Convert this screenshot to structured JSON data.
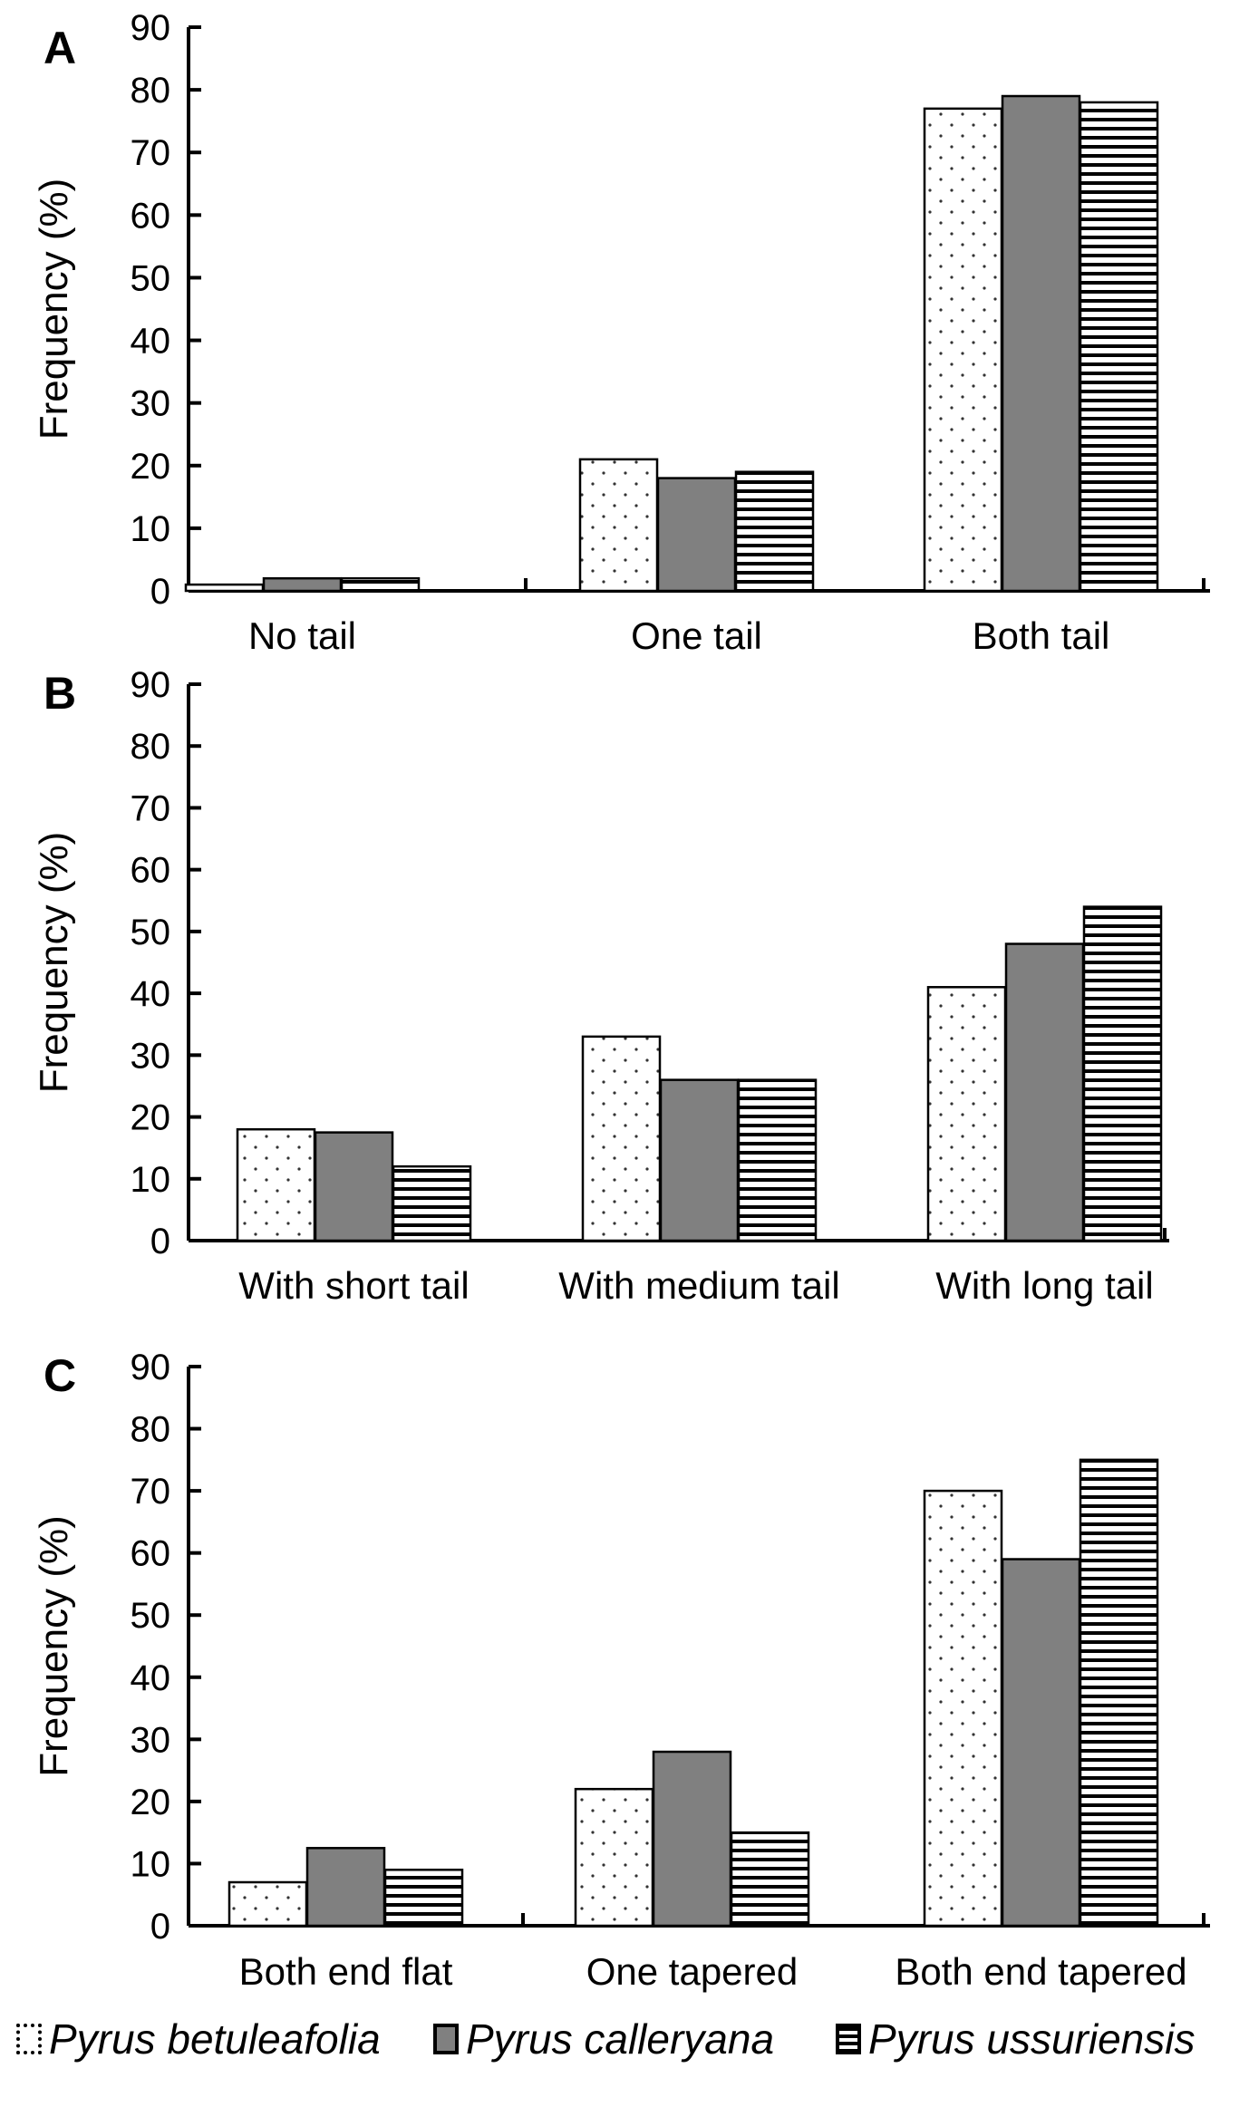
{
  "chart_data": [
    {
      "type": "bar",
      "panel_label": "A",
      "categories": [
        "No tail",
        "One tail",
        "Both tail"
      ],
      "series": [
        {
          "name": "Pyrus  betuleafolia",
          "values": [
            1,
            21,
            77
          ]
        },
        {
          "name": "Pyrus  calleryana",
          "values": [
            2,
            18,
            79
          ]
        },
        {
          "name": "Pyrus  ussuriensis",
          "values": [
            2,
            19,
            78
          ]
        }
      ],
      "ylabel": "Frequency (%)",
      "ylim": [
        0,
        90
      ],
      "yticks": [
        "0",
        "10",
        "20",
        "30",
        "40",
        "50",
        "60",
        "70",
        "80",
        "90"
      ],
      "grid": false
    },
    {
      "type": "bar",
      "panel_label": "B",
      "categories": [
        "With short tail",
        "With medium tail",
        "With long tail"
      ],
      "series": [
        {
          "name": "Pyrus  betuleafolia",
          "values": [
            18,
            33,
            41
          ]
        },
        {
          "name": "Pyrus  calleryana",
          "values": [
            17.5,
            26,
            48
          ]
        },
        {
          "name": "Pyrus  ussuriensis",
          "values": [
            12,
            26,
            54
          ]
        }
      ],
      "ylabel": "Frequency (%)",
      "ylim": [
        0,
        90
      ],
      "yticks": [
        "0",
        "10",
        "20",
        "30",
        "40",
        "50",
        "60",
        "70",
        "80",
        "90"
      ],
      "grid": false
    },
    {
      "type": "bar",
      "panel_label": "C",
      "categories": [
        "Both end flat",
        "One tapered",
        "Both end tapered"
      ],
      "series": [
        {
          "name": "Pyrus  betuleafolia",
          "values": [
            7,
            22,
            70
          ]
        },
        {
          "name": "Pyrus  calleryana",
          "values": [
            12.5,
            28,
            59
          ]
        },
        {
          "name": "Pyrus  ussuriensis",
          "values": [
            9,
            15,
            75
          ]
        }
      ],
      "ylabel": "Frequency (%)",
      "ylim": [
        0,
        90
      ],
      "yticks": [
        "0",
        "10",
        "20",
        "30",
        "40",
        "50",
        "60",
        "70",
        "80",
        "90"
      ],
      "grid": false
    }
  ],
  "legend": [
    {
      "label": "Pyrus  betuleafolia",
      "pattern": "dots",
      "color": "#ffffff"
    },
    {
      "label": "Pyrus  calleryana",
      "pattern": "solid",
      "color": "#808080"
    },
    {
      "label": "Pyrus  ussuriensis",
      "pattern": "hlines",
      "color": "#ffffff"
    }
  ],
  "legend_position": "bottom"
}
